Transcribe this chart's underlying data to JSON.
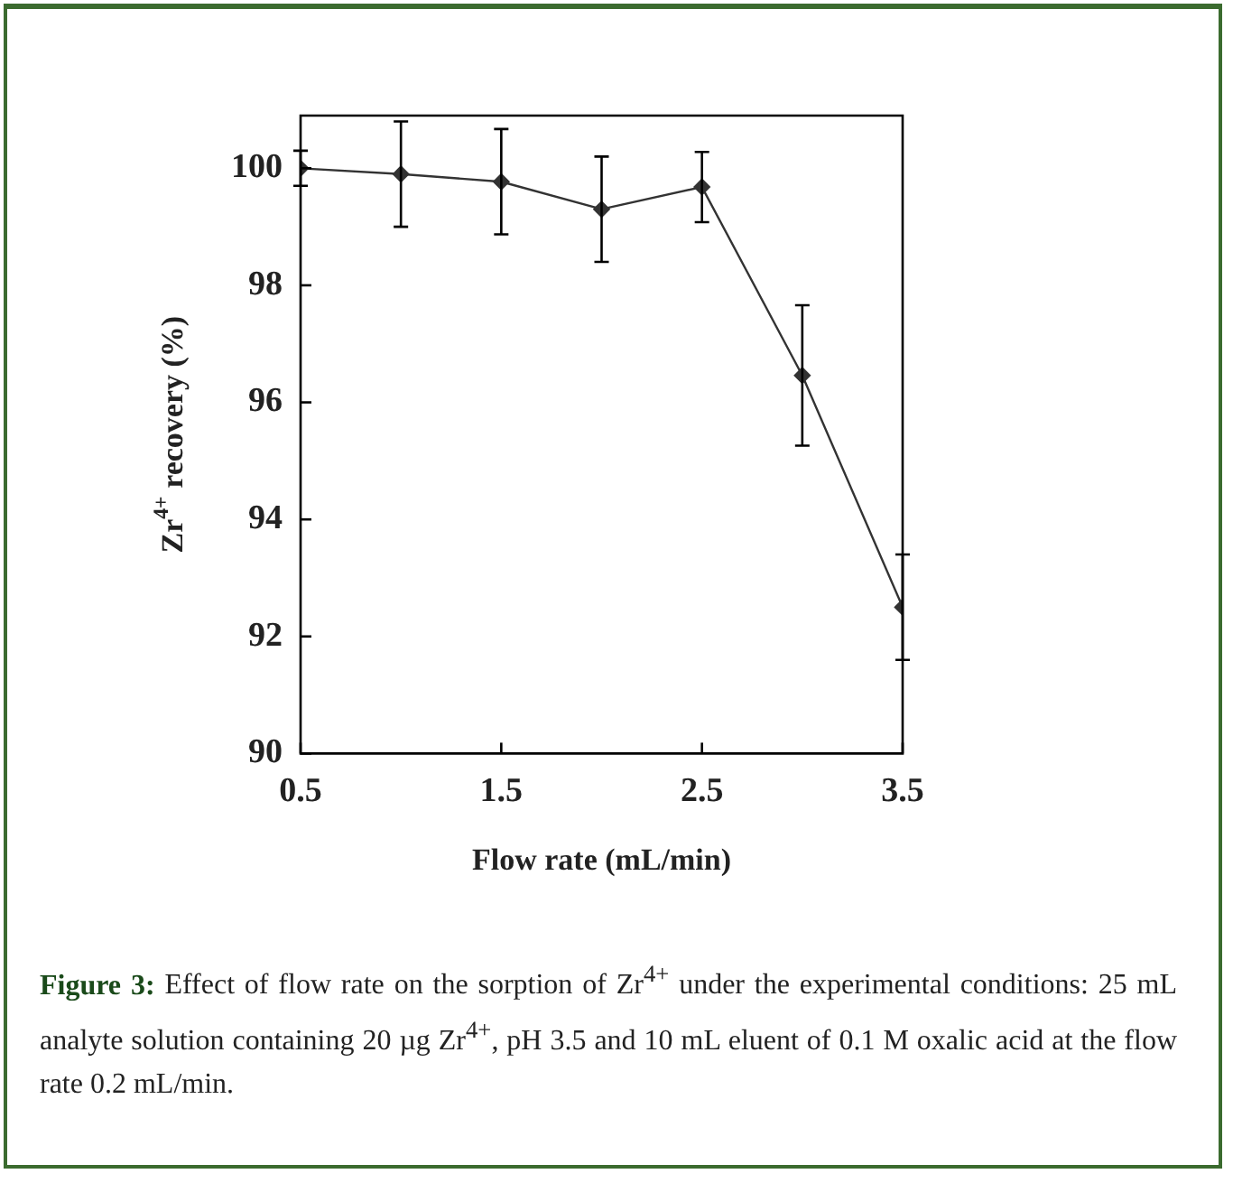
{
  "chart_data": {
    "type": "line",
    "xlabel": "Flow rate (mL/min)",
    "ylabel": "Zr$^{4+}$ recovery (%)",
    "x": [
      0.5,
      1.0,
      1.5,
      2.0,
      2.5,
      3.0,
      3.5
    ],
    "series": [
      {
        "color": "#333333",
        "values": [
          100.0,
          99.9,
          99.77,
          99.3,
          99.68,
          96.46,
          92.5
        ],
        "errors": [
          0.3,
          0.9,
          0.9,
          0.9,
          0.6,
          1.2,
          0.9
        ]
      }
    ],
    "xlim": [
      0.5,
      3.5
    ],
    "xticks": [
      0.5,
      1.5,
      2.5,
      3.5
    ],
    "ylim": [
      90,
      100.9
    ],
    "yticks": [
      90,
      92,
      94,
      96,
      98,
      100
    ],
    "grid": false,
    "legend": false,
    "marker": "diamond",
    "line_style": "solid",
    "annotations": [
      "Figure 3:",
      "Effect of flow rate on the sorption of Zr$^{4+}$ under the experimental conditions: 25 mL analyte solution containing 20 µg Zr$^{4+}$, pH 3.5 and 10 mL eluent of 0.1 M oxalic acid at the flow rate 0.2 mL/min."
    ]
  }
}
